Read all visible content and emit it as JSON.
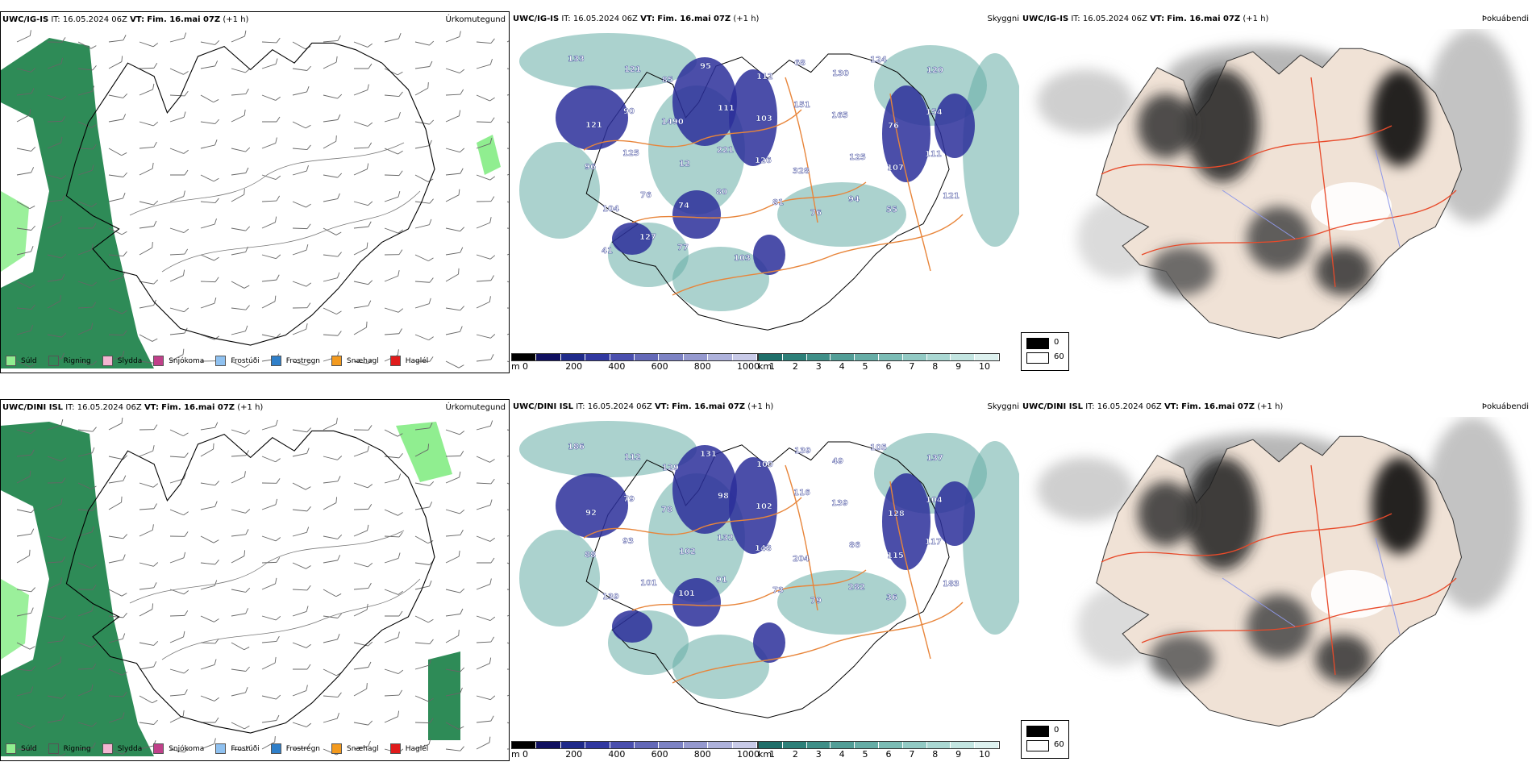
{
  "rows": [
    {
      "model": "UWC/IG-IS",
      "it_label": "IT:",
      "it_value": "16.05.2024 06Z",
      "vt_label": "VT:",
      "vt_value": "Fim. 16.mai 07Z",
      "lead": "(+1 h)",
      "labels_mid": [
        "133",
        "121",
        "85",
        "95",
        "112",
        "68",
        "130",
        "124",
        "120",
        "121",
        "90",
        "1490",
        "111",
        "103",
        "151",
        "165",
        "76",
        "154",
        "96",
        "125",
        "12",
        "221",
        "126",
        "328",
        "125",
        "107",
        "111",
        "104",
        "76",
        "74",
        "80",
        "81",
        "76",
        "94",
        "55",
        "121",
        "41",
        "127",
        "77",
        "103"
      ],
      "labels_right": []
    },
    {
      "model": "UWC/DINI ISL",
      "it_label": "IT:",
      "it_value": "16.05.2024 06Z",
      "vt_label": "VT:",
      "vt_value": "Fim. 16.mai 07Z",
      "lead": "(+1 h)",
      "labels_mid": [
        "186",
        "112",
        "129",
        "131",
        "100",
        "139",
        "49",
        "105",
        "137",
        "92",
        "79",
        "78",
        "98",
        "102",
        "116",
        "139",
        "128",
        "104",
        "88",
        "93",
        "102",
        "132",
        "148",
        "204",
        "86",
        "115",
        "117",
        "139",
        "101",
        "101",
        "91",
        "73",
        "79",
        "282",
        "36",
        "183"
      ],
      "labels_right": []
    }
  ],
  "titles": {
    "precip": "Úrkomutegund",
    "visibility": "Skyggni",
    "fog": "Þokuábendi"
  },
  "precip_legend": [
    {
      "label": "Súld",
      "color": "#90ee90"
    },
    {
      "label": "Rigning",
      "color": "#2e8b57"
    },
    {
      "label": "Slydda",
      "color": "#f4b6d2"
    },
    {
      "label": "Snjókoma",
      "color": "#c0408a"
    },
    {
      "label": "Frostúði",
      "color": "#8fc1f0"
    },
    {
      "label": "Frostregn",
      "color": "#2f7fc9"
    },
    {
      "label": "Snæhagl",
      "color": "#f39a1e"
    },
    {
      "label": "Haglél",
      "color": "#e01b1b"
    }
  ],
  "height_scale": {
    "unit": "m",
    "ticks": [
      "0",
      "200",
      "400",
      "600",
      "800",
      "1000"
    ],
    "colors": [
      "#000000",
      "#101060",
      "#1f2a8a",
      "#3138a0",
      "#4a4fae",
      "#6469b8",
      "#7d83c4",
      "#9599cf",
      "#aeb2dc",
      "#c8cae8"
    ]
  },
  "vis_scale": {
    "unit": "km",
    "ticks": [
      "1",
      "2",
      "3",
      "4",
      "5",
      "6",
      "7",
      "8",
      "9",
      "10"
    ],
    "colors": [
      "#1f6f6a",
      "#2d8079",
      "#3f8f88",
      "#529e97",
      "#66ada6",
      "#7bbcb5",
      "#92cac4",
      "#aad8d3",
      "#c3e5e1",
      "#ddf1ef"
    ]
  },
  "fog_key": [
    {
      "label": "0",
      "color": "#000000"
    },
    {
      "label": "60",
      "color": "#ffffff"
    }
  ]
}
